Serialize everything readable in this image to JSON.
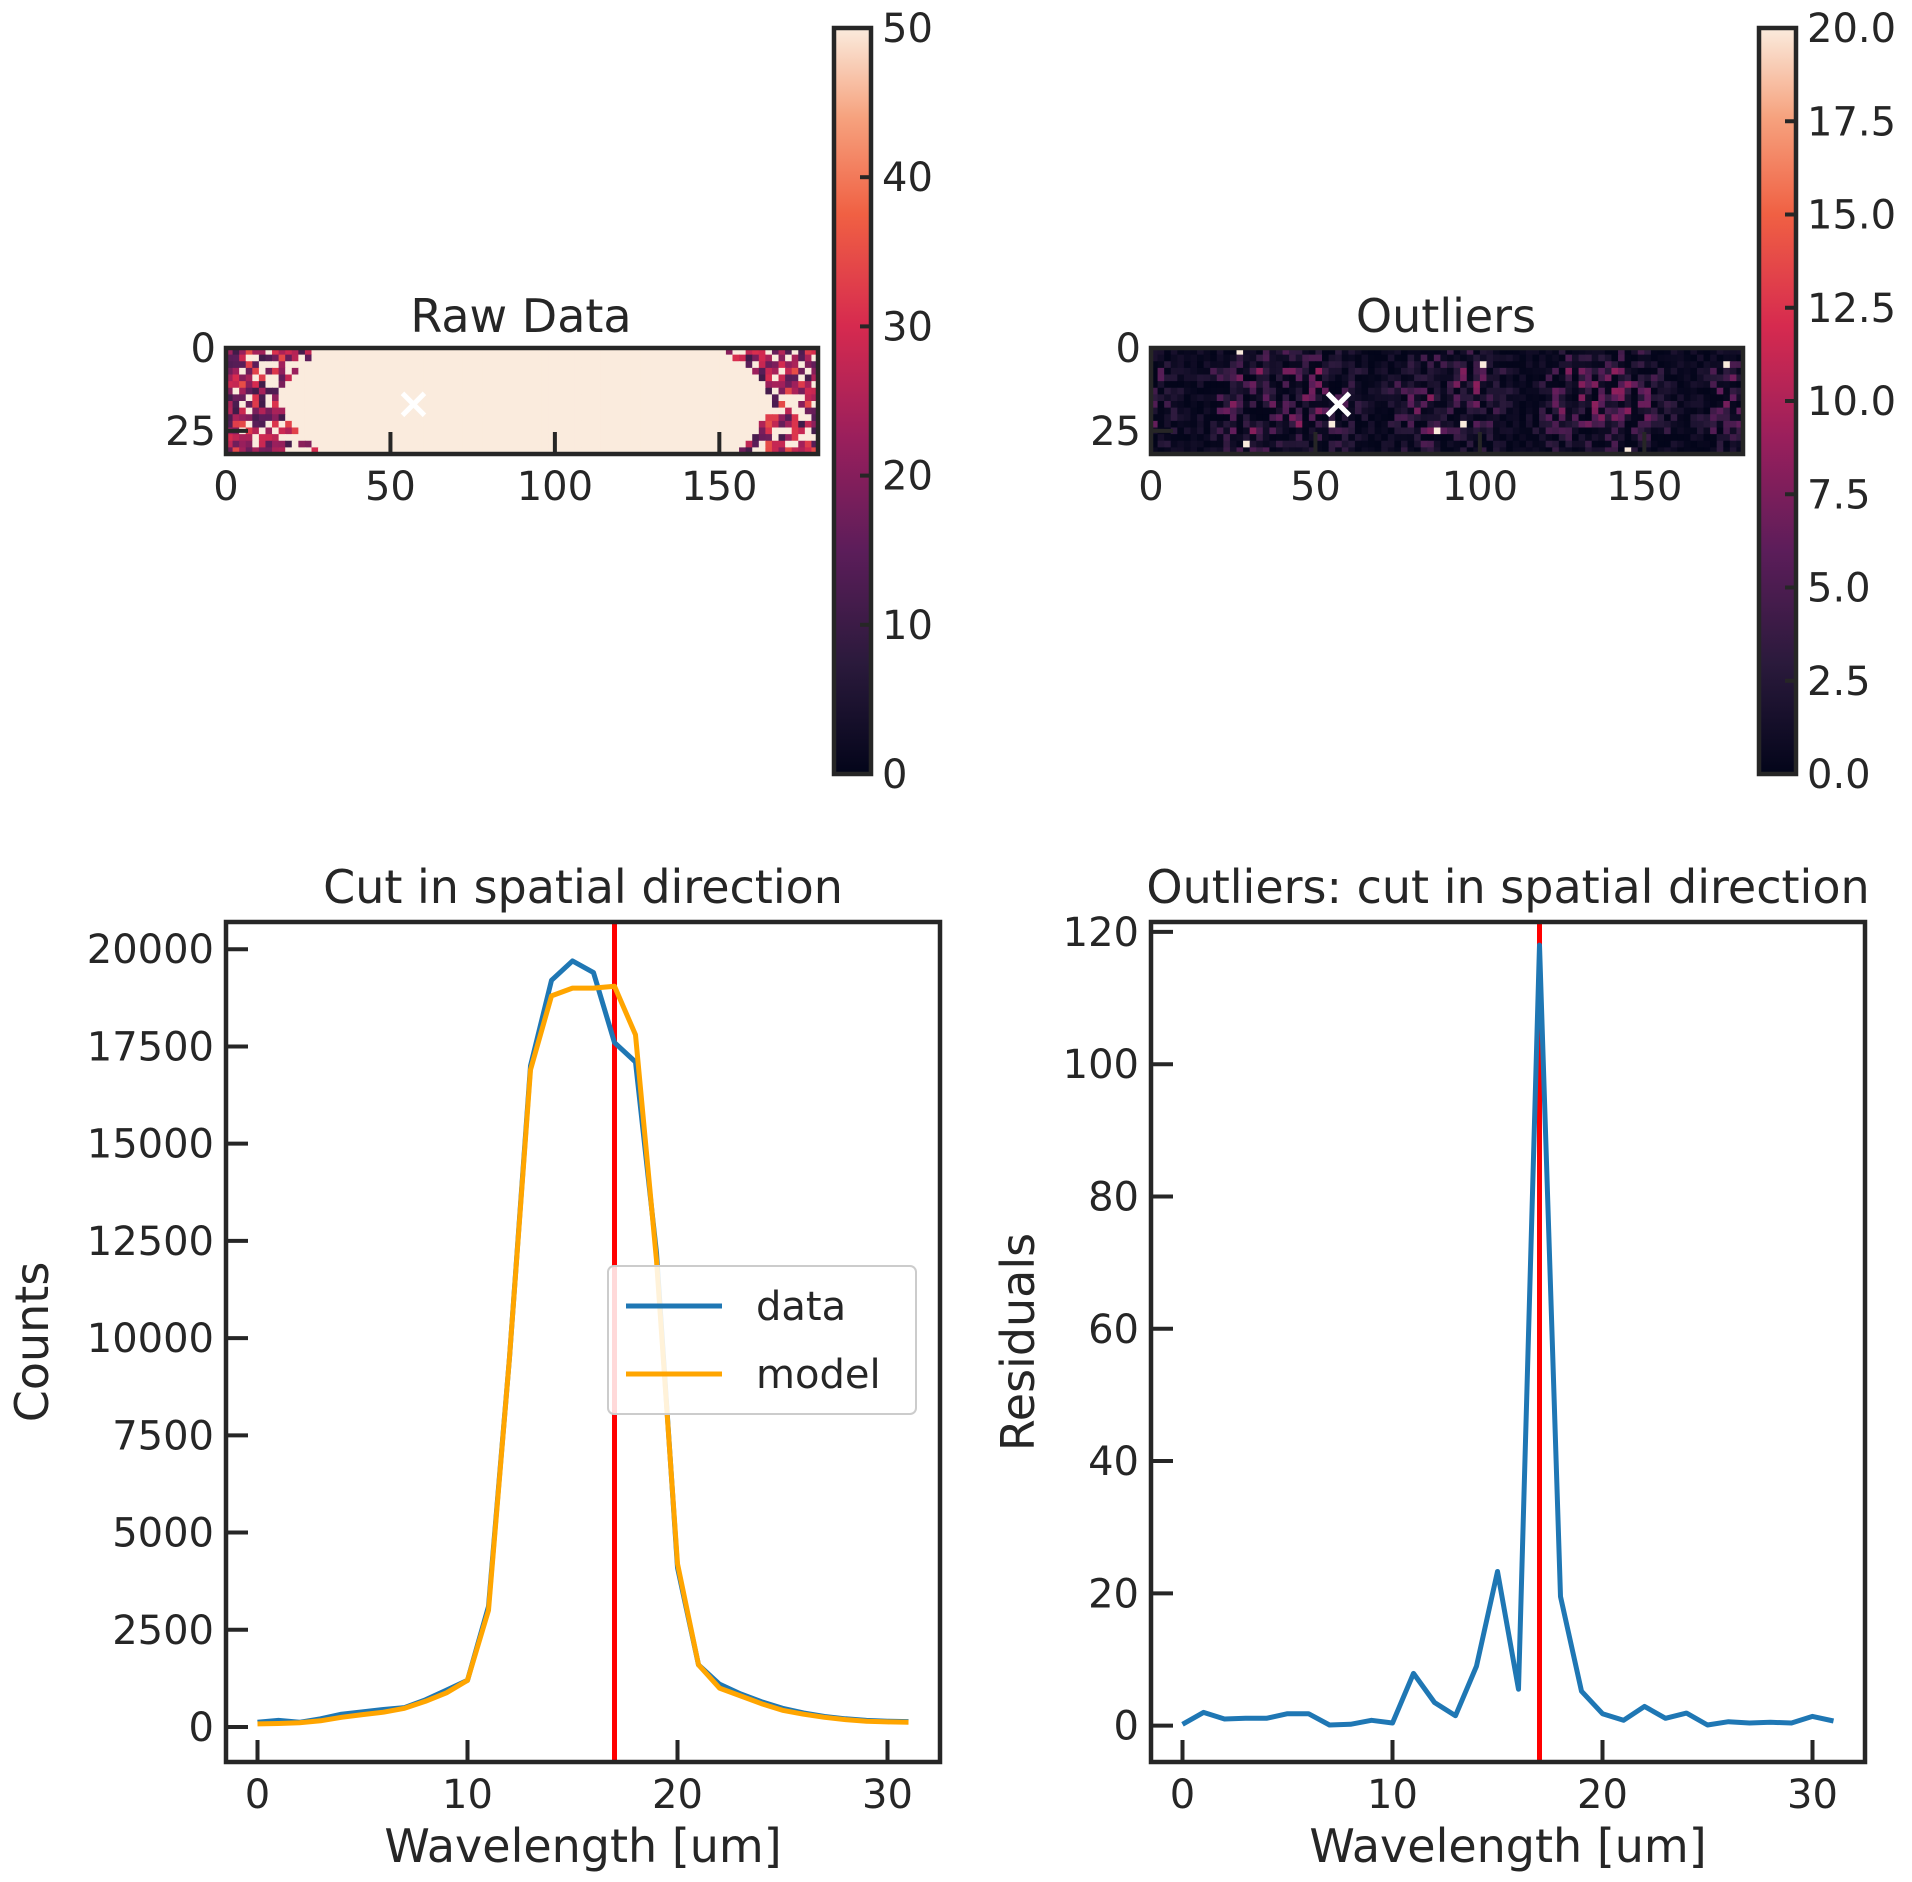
{
  "chart_data": [
    {
      "type": "heatmap",
      "title": "Raw Data",
      "x_ticks": [
        "0",
        "50",
        "100",
        "150"
      ],
      "y_ticks": [
        "0",
        "25"
      ],
      "xlim": [
        0,
        180
      ],
      "ylim": [
        0,
        32
      ],
      "marker": {
        "symbol": "x",
        "x": 57,
        "y": 17,
        "color": "#ffffff"
      },
      "colorbar": {
        "min": 0,
        "max": 50,
        "ticks": [
          "0",
          "10",
          "20",
          "30",
          "40",
          "50"
        ]
      },
      "colormap": "rocket"
    },
    {
      "type": "heatmap",
      "title": "Outliers",
      "x_ticks": [
        "0",
        "50",
        "100",
        "150"
      ],
      "y_ticks": [
        "0",
        "25"
      ],
      "xlim": [
        0,
        180
      ],
      "ylim": [
        0,
        32
      ],
      "marker": {
        "symbol": "x",
        "x": 57,
        "y": 17,
        "color": "#ffffff"
      },
      "colorbar": {
        "min": 0,
        "max": 20,
        "ticks": [
          "0.0",
          "2.5",
          "5.0",
          "7.5",
          "10.0",
          "12.5",
          "15.0",
          "17.5",
          "20.0"
        ]
      },
      "colormap": "rocket"
    },
    {
      "type": "line",
      "title": "Cut in spatial direction",
      "xlabel": "Wavelength [um]",
      "ylabel": "Counts",
      "xlim": [
        -1.5,
        32.5
      ],
      "ylim": [
        -900,
        20700
      ],
      "x_ticks": [
        "0",
        "10",
        "20",
        "30"
      ],
      "y_ticks": [
        "0",
        "2500",
        "5000",
        "7500",
        "10000",
        "12500",
        "15000",
        "17500",
        "20000"
      ],
      "x": [
        0,
        1,
        2,
        3,
        4,
        5,
        6,
        7,
        8,
        9,
        10,
        11,
        12,
        13,
        14,
        15,
        16,
        17,
        18,
        19,
        20,
        21,
        22,
        23,
        24,
        25,
        26,
        27,
        28,
        29,
        30,
        31
      ],
      "series": [
        {
          "name": "data",
          "color": "#1f77b4",
          "values": [
            120,
            170,
            120,
            210,
            330,
            390,
            450,
            500,
            700,
            950,
            1200,
            3100,
            9500,
            17000,
            19200,
            19700,
            19400,
            17600,
            17100,
            12200,
            4100,
            1600,
            1100,
            850,
            650,
            480,
            360,
            270,
            210,
            170,
            150,
            140
          ]
        },
        {
          "name": "model",
          "color": "#ffa500",
          "values": [
            80,
            90,
            110,
            160,
            250,
            320,
            380,
            480,
            660,
            880,
            1200,
            3000,
            9500,
            16900,
            18800,
            19000,
            19000,
            19050,
            17800,
            12000,
            4200,
            1600,
            1000,
            800,
            600,
            430,
            330,
            250,
            190,
            150,
            130,
            120
          ]
        }
      ],
      "vline": {
        "x": 17,
        "color": "#ff0000"
      },
      "legend": "center-right",
      "grid": false
    },
    {
      "type": "line",
      "title": "Outliers: cut in spatial direction",
      "xlabel": "Wavelength [um]",
      "ylabel": "Residuals",
      "xlim": [
        -1.5,
        32.5
      ],
      "ylim": [
        -5.5,
        121.5
      ],
      "x_ticks": [
        "0",
        "10",
        "20",
        "30"
      ],
      "y_ticks": [
        "0",
        "20",
        "40",
        "60",
        "80",
        "100",
        "120"
      ],
      "x": [
        0,
        1,
        2,
        3,
        4,
        5,
        6,
        7,
        8,
        9,
        10,
        11,
        12,
        13,
        14,
        15,
        16,
        17,
        18,
        19,
        20,
        21,
        22,
        23,
        24,
        25,
        26,
        27,
        28,
        29,
        30,
        31
      ],
      "series": [
        {
          "color": "#1f77b4",
          "values": [
            0.2,
            2.0,
            1.0,
            1.1,
            1.1,
            1.8,
            1.8,
            0.1,
            0.2,
            0.8,
            0.4,
            7.9,
            3.5,
            1.5,
            9.0,
            23.3,
            5.5,
            118.0,
            19.5,
            5.2,
            1.8,
            0.8,
            2.9,
            1.1,
            1.9,
            0.1,
            0.6,
            0.4,
            0.5,
            0.4,
            1.4,
            0.7
          ]
        }
      ],
      "vline": {
        "x": 17,
        "color": "#ff0000"
      },
      "grid": false
    }
  ]
}
